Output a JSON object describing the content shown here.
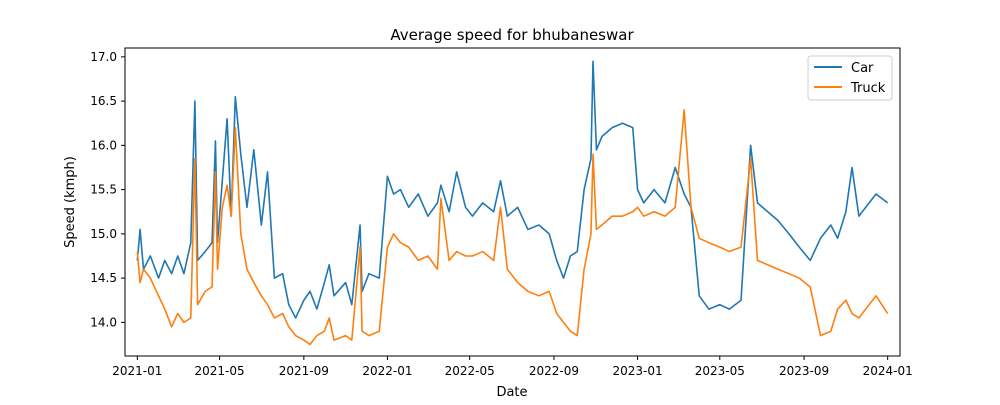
{
  "chart_data": {
    "type": "line",
    "title": "Average speed for bhubaneswar",
    "xlabel": "Date",
    "ylabel": "Speed (kmph)",
    "xlim": [
      "2020-12-14",
      "2024-01-19"
    ],
    "ylim": [
      13.62,
      17.1
    ],
    "x_ticks": [
      "2021-01",
      "2021-05",
      "2021-09",
      "2022-01",
      "2022-05",
      "2022-09",
      "2023-01",
      "2023-05",
      "2023-09",
      "2024-01"
    ],
    "y_ticks": [
      14.0,
      14.5,
      15.0,
      15.5,
      16.0,
      16.5,
      17.0
    ],
    "y_tick_labels": [
      "14.0",
      "14.5",
      "15.0",
      "15.5",
      "16.0",
      "16.5",
      "17.0"
    ],
    "grid": false,
    "legend_position": "top-right",
    "series": [
      {
        "name": "Car",
        "color": "#1f77b4",
        "points": [
          [
            "2021-01-01",
            14.7
          ],
          [
            "2021-01-05",
            15.05
          ],
          [
            "2021-01-10",
            14.6
          ],
          [
            "2021-01-20",
            14.75
          ],
          [
            "2021-02-01",
            14.5
          ],
          [
            "2021-02-10",
            14.7
          ],
          [
            "2021-02-20",
            14.55
          ],
          [
            "2021-03-01",
            14.75
          ],
          [
            "2021-03-10",
            14.55
          ],
          [
            "2021-03-20",
            14.9
          ],
          [
            "2021-03-26",
            16.5
          ],
          [
            "2021-03-30",
            14.7
          ],
          [
            "2021-04-10",
            14.8
          ],
          [
            "2021-04-20",
            14.9
          ],
          [
            "2021-04-25",
            16.05
          ],
          [
            "2021-04-28",
            14.9
          ],
          [
            "2021-05-05",
            15.6
          ],
          [
            "2021-05-12",
            16.3
          ],
          [
            "2021-05-18",
            15.2
          ],
          [
            "2021-05-24",
            16.55
          ],
          [
            "2021-06-01",
            15.9
          ],
          [
            "2021-06-10",
            15.3
          ],
          [
            "2021-06-20",
            15.95
          ],
          [
            "2021-07-01",
            15.1
          ],
          [
            "2021-07-10",
            15.7
          ],
          [
            "2021-07-20",
            14.5
          ],
          [
            "2021-08-01",
            14.55
          ],
          [
            "2021-08-10",
            14.2
          ],
          [
            "2021-08-20",
            14.05
          ],
          [
            "2021-09-01",
            14.25
          ],
          [
            "2021-09-10",
            14.35
          ],
          [
            "2021-09-20",
            14.15
          ],
          [
            "2021-10-01",
            14.45
          ],
          [
            "2021-10-08",
            14.65
          ],
          [
            "2021-10-15",
            14.3
          ],
          [
            "2021-11-01",
            14.45
          ],
          [
            "2021-11-10",
            14.2
          ],
          [
            "2021-11-22",
            15.1
          ],
          [
            "2021-11-25",
            14.35
          ],
          [
            "2021-12-05",
            14.55
          ],
          [
            "2021-12-20",
            14.5
          ],
          [
            "2022-01-01",
            15.65
          ],
          [
            "2022-01-10",
            15.45
          ],
          [
            "2022-01-20",
            15.5
          ],
          [
            "2022-02-01",
            15.3
          ],
          [
            "2022-02-15",
            15.45
          ],
          [
            "2022-03-01",
            15.2
          ],
          [
            "2022-03-15",
            15.35
          ],
          [
            "2022-03-20",
            15.55
          ],
          [
            "2022-04-01",
            15.25
          ],
          [
            "2022-04-12",
            15.7
          ],
          [
            "2022-04-25",
            15.3
          ],
          [
            "2022-05-05",
            15.2
          ],
          [
            "2022-05-20",
            15.35
          ],
          [
            "2022-06-05",
            15.25
          ],
          [
            "2022-06-15",
            15.6
          ],
          [
            "2022-06-25",
            15.2
          ],
          [
            "2022-07-10",
            15.3
          ],
          [
            "2022-07-25",
            15.05
          ],
          [
            "2022-08-10",
            15.1
          ],
          [
            "2022-08-25",
            15.0
          ],
          [
            "2022-09-05",
            14.7
          ],
          [
            "2022-09-15",
            14.5
          ],
          [
            "2022-09-25",
            14.75
          ],
          [
            "2022-10-05",
            14.8
          ],
          [
            "2022-10-15",
            15.5
          ],
          [
            "2022-10-25",
            15.85
          ],
          [
            "2022-10-28",
            16.95
          ],
          [
            "2022-11-02",
            15.95
          ],
          [
            "2022-11-10",
            16.1
          ],
          [
            "2022-11-25",
            16.2
          ],
          [
            "2022-12-10",
            16.25
          ],
          [
            "2022-12-25",
            16.2
          ],
          [
            "2023-01-01",
            15.5
          ],
          [
            "2023-01-10",
            15.35
          ],
          [
            "2023-01-25",
            15.5
          ],
          [
            "2023-02-10",
            15.35
          ],
          [
            "2023-02-25",
            15.75
          ],
          [
            "2023-03-10",
            15.45
          ],
          [
            "2023-03-20",
            15.3
          ],
          [
            "2023-04-01",
            14.3
          ],
          [
            "2023-04-15",
            14.15
          ],
          [
            "2023-05-01",
            14.2
          ],
          [
            "2023-05-15",
            14.15
          ],
          [
            "2023-06-01",
            14.25
          ],
          [
            "2023-06-15",
            16.0
          ],
          [
            "2023-06-25",
            15.35
          ],
          [
            "2023-07-10",
            15.25
          ],
          [
            "2023-07-25",
            15.15
          ],
          [
            "2023-08-10",
            15.0
          ],
          [
            "2023-08-25",
            14.85
          ],
          [
            "2023-09-10",
            14.7
          ],
          [
            "2023-09-25",
            14.95
          ],
          [
            "2023-10-10",
            15.1
          ],
          [
            "2023-10-20",
            14.95
          ],
          [
            "2023-11-01",
            15.25
          ],
          [
            "2023-11-10",
            15.75
          ],
          [
            "2023-11-20",
            15.2
          ],
          [
            "2023-12-05",
            15.35
          ],
          [
            "2023-12-15",
            15.45
          ],
          [
            "2024-01-01",
            15.35
          ]
        ]
      },
      {
        "name": "Truck",
        "color": "#ff7f0e",
        "points": [
          [
            "2021-01-01",
            14.8
          ],
          [
            "2021-01-05",
            14.45
          ],
          [
            "2021-01-10",
            14.6
          ],
          [
            "2021-01-20",
            14.5
          ],
          [
            "2021-02-01",
            14.3
          ],
          [
            "2021-02-10",
            14.15
          ],
          [
            "2021-02-20",
            13.95
          ],
          [
            "2021-03-01",
            14.1
          ],
          [
            "2021-03-10",
            14.0
          ],
          [
            "2021-03-20",
            14.05
          ],
          [
            "2021-03-26",
            15.85
          ],
          [
            "2021-03-30",
            14.2
          ],
          [
            "2021-04-10",
            14.35
          ],
          [
            "2021-04-20",
            14.4
          ],
          [
            "2021-04-25",
            15.7
          ],
          [
            "2021-04-28",
            14.6
          ],
          [
            "2021-05-05",
            15.3
          ],
          [
            "2021-05-12",
            15.55
          ],
          [
            "2021-05-18",
            15.2
          ],
          [
            "2021-05-24",
            16.2
          ],
          [
            "2021-06-01",
            15.0
          ],
          [
            "2021-06-10",
            14.6
          ],
          [
            "2021-06-20",
            14.45
          ],
          [
            "2021-07-01",
            14.3
          ],
          [
            "2021-07-10",
            14.2
          ],
          [
            "2021-07-20",
            14.05
          ],
          [
            "2021-08-01",
            14.1
          ],
          [
            "2021-08-10",
            13.95
          ],
          [
            "2021-08-20",
            13.85
          ],
          [
            "2021-09-01",
            13.8
          ],
          [
            "2021-09-10",
            13.75
          ],
          [
            "2021-09-20",
            13.85
          ],
          [
            "2021-10-01",
            13.9
          ],
          [
            "2021-10-08",
            14.05
          ],
          [
            "2021-10-15",
            13.8
          ],
          [
            "2021-11-01",
            13.85
          ],
          [
            "2021-11-10",
            13.8
          ],
          [
            "2021-11-22",
            14.85
          ],
          [
            "2021-11-25",
            13.9
          ],
          [
            "2021-12-05",
            13.85
          ],
          [
            "2021-12-20",
            13.9
          ],
          [
            "2022-01-01",
            14.85
          ],
          [
            "2022-01-10",
            15.0
          ],
          [
            "2022-01-20",
            14.9
          ],
          [
            "2022-02-01",
            14.85
          ],
          [
            "2022-02-15",
            14.7
          ],
          [
            "2022-03-01",
            14.75
          ],
          [
            "2022-03-15",
            14.6
          ],
          [
            "2022-03-20",
            15.4
          ],
          [
            "2022-04-01",
            14.7
          ],
          [
            "2022-04-12",
            14.8
          ],
          [
            "2022-04-25",
            14.75
          ],
          [
            "2022-05-05",
            14.75
          ],
          [
            "2022-05-20",
            14.8
          ],
          [
            "2022-06-05",
            14.7
          ],
          [
            "2022-06-15",
            15.3
          ],
          [
            "2022-06-25",
            14.6
          ],
          [
            "2022-07-10",
            14.45
          ],
          [
            "2022-07-25",
            14.35
          ],
          [
            "2022-08-10",
            14.3
          ],
          [
            "2022-08-25",
            14.35
          ],
          [
            "2022-09-05",
            14.1
          ],
          [
            "2022-09-15",
            14.0
          ],
          [
            "2022-09-25",
            13.9
          ],
          [
            "2022-10-05",
            13.85
          ],
          [
            "2022-10-15",
            14.6
          ],
          [
            "2022-10-25",
            15.0
          ],
          [
            "2022-10-28",
            15.9
          ],
          [
            "2022-11-02",
            15.05
          ],
          [
            "2022-11-10",
            15.1
          ],
          [
            "2022-11-25",
            15.2
          ],
          [
            "2022-12-10",
            15.2
          ],
          [
            "2022-12-25",
            15.25
          ],
          [
            "2023-01-01",
            15.3
          ],
          [
            "2023-01-10",
            15.2
          ],
          [
            "2023-01-25",
            15.25
          ],
          [
            "2023-02-10",
            15.2
          ],
          [
            "2023-02-25",
            15.3
          ],
          [
            "2023-03-10",
            16.4
          ],
          [
            "2023-03-20",
            15.3
          ],
          [
            "2023-04-01",
            14.95
          ],
          [
            "2023-04-15",
            14.9
          ],
          [
            "2023-05-01",
            14.85
          ],
          [
            "2023-05-15",
            14.8
          ],
          [
            "2023-06-01",
            14.85
          ],
          [
            "2023-06-15",
            15.85
          ],
          [
            "2023-06-25",
            14.7
          ],
          [
            "2023-07-10",
            14.65
          ],
          [
            "2023-07-25",
            14.6
          ],
          [
            "2023-08-10",
            14.55
          ],
          [
            "2023-08-25",
            14.5
          ],
          [
            "2023-09-10",
            14.4
          ],
          [
            "2023-09-25",
            13.85
          ],
          [
            "2023-10-10",
            13.9
          ],
          [
            "2023-10-20",
            14.15
          ],
          [
            "2023-11-01",
            14.25
          ],
          [
            "2023-11-10",
            14.1
          ],
          [
            "2023-11-20",
            14.05
          ],
          [
            "2023-12-05",
            14.2
          ],
          [
            "2023-12-15",
            14.3
          ],
          [
            "2024-01-01",
            14.1
          ]
        ]
      }
    ]
  }
}
